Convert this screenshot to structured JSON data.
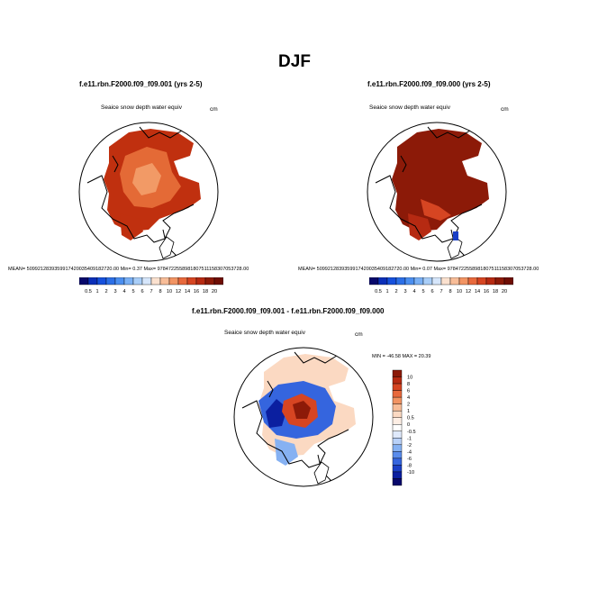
{
  "page": {
    "title": "DJF"
  },
  "panels": [
    {
      "case_title": "f.e11.rbn.F2000.f09_f09.001 (yrs 2-5)",
      "variable": "Seaice snow depth water equiv",
      "units": "cm",
      "stats": "MEAN= 5099212839359917420035409182720.00  Min=  0.37  Max= 9784722558981807511158307053728.00"
    },
    {
      "case_title": "f.e11.rbn.F2000.f09_f09.000 (yrs 2-5)",
      "variable": "Seaice snow depth water equiv",
      "units": "cm",
      "stats": "MEAN= 5099212839359917420035409182720.00  Min=  0.07  Max= 9784722558981807511158307053728.00"
    },
    {
      "case_title": "f.e11.rbn.F2000.f09_f09.001 - f.e11.rbn.F2000.f09_f09.000",
      "variable": "Seaice snow depth water equiv",
      "units": "cm",
      "stats": "MIN = -46.58 MAX =  20.39"
    }
  ],
  "colorbar_abs": {
    "labels": [
      "0.5",
      "1",
      "2",
      "3",
      "4",
      "5",
      "6",
      "7",
      "8",
      "10",
      "12",
      "14",
      "16",
      "18",
      "20"
    ],
    "colors": [
      "#08086b",
      "#0b2fb8",
      "#1650dc",
      "#2c6fe6",
      "#4b8ff0",
      "#79b0f5",
      "#a9cef8",
      "#d6e6fb",
      "#fbe1cf",
      "#f8bd98",
      "#f29463",
      "#e8693c",
      "#d64522",
      "#b62a12",
      "#8c1a08",
      "#6e0e04"
    ]
  },
  "colorbar_diff": {
    "labels": [
      "10",
      "8",
      "6",
      "4",
      "2",
      "1",
      "0.5",
      "0",
      "-0.5",
      "-1",
      "-2",
      "-4",
      "-6",
      "-8",
      "-10"
    ],
    "colors": [
      "#8c1a08",
      "#b62a12",
      "#d64522",
      "#e8693c",
      "#f29463",
      "#f8bd98",
      "#fbd9c2",
      "#fdeee4",
      "#ffffff",
      "#dfe9fb",
      "#b9d1f8",
      "#86b1f2",
      "#5a8cec",
      "#3565de",
      "#1a3fc6",
      "#0b1fa0",
      "#08086b"
    ]
  }
}
